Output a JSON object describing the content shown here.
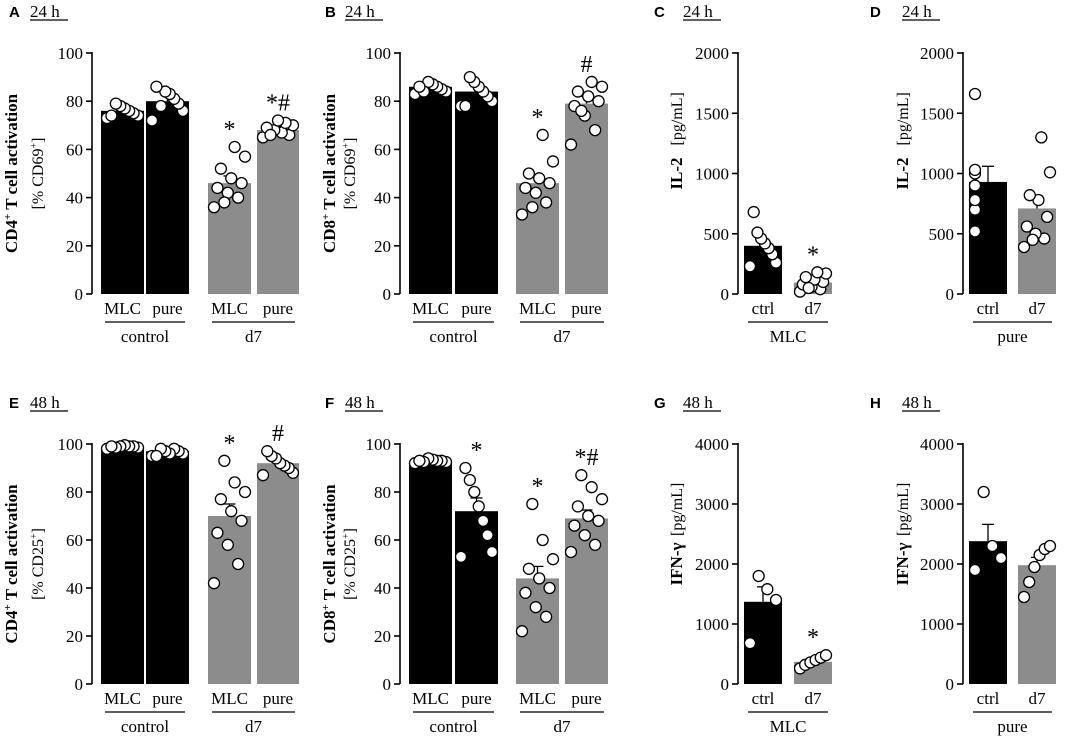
{
  "colors": {
    "black_bar": "#000000",
    "grey_bar": "#8c8c8c",
    "point_fill": "#ffffff"
  },
  "chart_data": [
    {
      "id": "A",
      "panel_label": "A",
      "time": "24 h",
      "type": "bar",
      "ylabel_main": "CD4",
      "ylabel_sup": "+",
      "ylabel_rest": " T cell activation",
      "ylabel_sub": "[% CD69",
      "ylabel_sub_sup": "+",
      "ylabel_sub_end": "]",
      "ylim": [
        0,
        100
      ],
      "yticks": [
        "0",
        "20",
        "40",
        "60",
        "80",
        "100"
      ],
      "categories": [
        "MLC",
        "pure",
        "MLC",
        "pure"
      ],
      "bar_colors": [
        "black",
        "black",
        "grey",
        "grey"
      ],
      "values": [
        76,
        80,
        46,
        68
      ],
      "sem": [
        1.5,
        2.5,
        3.0,
        1.5
      ],
      "points": [
        [
          73,
          74,
          75,
          76,
          77,
          78,
          79,
          74
        ],
        [
          72,
          76,
          79,
          81,
          83,
          84,
          78,
          86
        ],
        [
          36,
          40,
          42,
          44,
          46,
          48,
          52,
          57,
          61,
          38
        ],
        [
          65,
          66,
          67,
          68,
          69,
          70,
          71,
          72,
          66
        ]
      ],
      "marks": [
        "",
        "",
        "*",
        "*#"
      ],
      "groups": [
        {
          "label": "control",
          "span": [
            0,
            1
          ]
        },
        {
          "label": "d7",
          "span": [
            2,
            3
          ]
        }
      ]
    },
    {
      "id": "B",
      "panel_label": "B",
      "time": "24 h",
      "type": "bar",
      "ylabel_main": "CD8",
      "ylabel_sup": "+",
      "ylabel_rest": " T cell activation",
      "ylabel_sub": "[% CD69",
      "ylabel_sub_sup": "+",
      "ylabel_sub_end": "]",
      "ylim": [
        0,
        100
      ],
      "yticks": [
        "0",
        "20",
        "40",
        "60",
        "80",
        "100"
      ],
      "categories": [
        "MLC",
        "pure",
        "MLC",
        "pure"
      ],
      "bar_colors": [
        "black",
        "black",
        "grey",
        "grey"
      ],
      "values": [
        86,
        84,
        46,
        79
      ],
      "sem": [
        1.2,
        2.0,
        3.5,
        3.0
      ],
      "points": [
        [
          83,
          84,
          85,
          86,
          87,
          88,
          84,
          86
        ],
        [
          78,
          80,
          82,
          84,
          86,
          88,
          90,
          78
        ],
        [
          33,
          38,
          42,
          44,
          46,
          48,
          50,
          55,
          66,
          36
        ],
        [
          62,
          68,
          74,
          78,
          80,
          82,
          84,
          86,
          88,
          76
        ]
      ],
      "marks": [
        "",
        "",
        "*",
        "#"
      ],
      "groups": [
        {
          "label": "control",
          "span": [
            0,
            1
          ]
        },
        {
          "label": "d7",
          "span": [
            2,
            3
          ]
        }
      ]
    },
    {
      "id": "C",
      "panel_label": "C",
      "time": "24 h",
      "type": "bar",
      "ylabel_main": "IL-2",
      "ylabel_unit": "[pg/mL]",
      "ylim": [
        0,
        2000
      ],
      "yticks": [
        "0",
        "500",
        "1000",
        "1500",
        "2000"
      ],
      "categories": [
        "ctrl",
        "d7"
      ],
      "bar_colors": [
        "black",
        "grey"
      ],
      "values": [
        400,
        95
      ],
      "sem": [
        55,
        25
      ],
      "points": [
        [
          230,
          260,
          330,
          380,
          420,
          460,
          510,
          680
        ],
        [
          20,
          40,
          60,
          80,
          100,
          120,
          140,
          170,
          180,
          50
        ]
      ],
      "marks": [
        "",
        "*"
      ],
      "groups": [
        {
          "label": "MLC",
          "span": [
            0,
            1
          ]
        }
      ]
    },
    {
      "id": "D",
      "panel_label": "D",
      "time": "24 h",
      "type": "bar",
      "ylabel_main": "IL-2",
      "ylabel_unit": "[pg/mL]",
      "ylim": [
        0,
        2000
      ],
      "yticks": [
        "0",
        "500",
        "1000",
        "1500",
        "2000"
      ],
      "categories": [
        "ctrl",
        "d7"
      ],
      "bar_colors": [
        "black",
        "grey"
      ],
      "values": [
        930,
        710
      ],
      "sem": [
        130,
        95
      ],
      "points": [
        [
          520,
          700,
          780,
          900,
          1000,
          1030,
          1660
        ],
        [
          390,
          460,
          500,
          560,
          640,
          780,
          820,
          1010,
          1300,
          450
        ]
      ],
      "marks": [
        "",
        ""
      ],
      "groups": [
        {
          "label": "pure",
          "span": [
            0,
            1
          ]
        }
      ]
    },
    {
      "id": "E",
      "panel_label": "E",
      "time": "48 h",
      "type": "bar",
      "ylabel_main": "CD4",
      "ylabel_sup": "+",
      "ylabel_rest": " T cell activation",
      "ylabel_sub": "[% CD25",
      "ylabel_sub_sup": "+",
      "ylabel_sub_end": "]",
      "ylim": [
        0,
        100
      ],
      "yticks": [
        "0",
        "20",
        "40",
        "60",
        "80",
        "100"
      ],
      "categories": [
        "MLC",
        "pure",
        "MLC",
        "pure"
      ],
      "bar_colors": [
        "black",
        "black",
        "grey",
        "grey"
      ],
      "values": [
        99,
        97,
        70,
        92
      ],
      "sem": [
        0.5,
        1.0,
        5.0,
        1.5
      ],
      "points": [
        [
          98,
          98.5,
          99,
          99,
          99.5,
          99,
          98.5,
          99
        ],
        [
          95,
          96,
          97,
          98,
          96,
          97,
          98,
          95
        ],
        [
          42,
          50,
          58,
          63,
          68,
          72,
          77,
          80,
          84,
          93
        ],
        [
          87,
          88,
          90,
          91,
          92,
          94,
          95,
          97
        ]
      ],
      "marks": [
        "",
        "",
        "*",
        "#"
      ],
      "groups": [
        {
          "label": "control",
          "span": [
            0,
            1
          ]
        },
        {
          "label": "d7",
          "span": [
            2,
            3
          ]
        }
      ]
    },
    {
      "id": "F",
      "panel_label": "F",
      "time": "48 h",
      "type": "bar",
      "ylabel_main": "CD8",
      "ylabel_sup": "+",
      "ylabel_rest": " T cell activation",
      "ylabel_sub": "[% CD25",
      "ylabel_sub_sup": "+",
      "ylabel_sub_end": "]",
      "ylim": [
        0,
        100
      ],
      "yticks": [
        "0",
        "20",
        "40",
        "60",
        "80",
        "100"
      ],
      "categories": [
        "MLC",
        "pure",
        "MLC",
        "pure"
      ],
      "bar_colors": [
        "black",
        "black",
        "grey",
        "grey"
      ],
      "values": [
        93,
        72,
        44,
        69
      ],
      "sem": [
        0.5,
        5.5,
        5.0,
        3.5
      ],
      "points": [
        [
          92,
          92.5,
          93,
          93,
          93.5,
          94,
          92.5,
          93
        ],
        [
          53,
          55,
          62,
          68,
          74,
          80,
          85,
          90
        ],
        [
          22,
          28,
          32,
          38,
          40,
          44,
          48,
          52,
          60,
          75
        ],
        [
          55,
          58,
          62,
          66,
          68,
          70,
          74,
          77,
          82,
          87
        ]
      ],
      "marks": [
        "",
        "*",
        "*",
        "*#"
      ],
      "groups": [
        {
          "label": "control",
          "span": [
            0,
            1
          ]
        },
        {
          "label": "d7",
          "span": [
            2,
            3
          ]
        }
      ]
    },
    {
      "id": "G",
      "panel_label": "G",
      "time": "48 h",
      "type": "bar",
      "ylabel_main": "IFN-γ",
      "ylabel_unit": "[pg/mL]",
      "ylim": [
        0,
        4000
      ],
      "yticks": [
        "0",
        "1000",
        "2000",
        "3000",
        "4000"
      ],
      "categories": [
        "ctrl",
        "d7"
      ],
      "bar_colors": [
        "black",
        "grey"
      ],
      "values": [
        1370,
        370
      ],
      "sem": [
        250,
        40
      ],
      "points": [
        [
          680,
          1400,
          1580,
          1800
        ],
        [
          260,
          320,
          360,
          400,
          440,
          480
        ]
      ],
      "marks": [
        "",
        "*"
      ],
      "groups": [
        {
          "label": "MLC",
          "span": [
            0,
            1
          ]
        }
      ]
    },
    {
      "id": "H",
      "panel_label": "H",
      "time": "48 h",
      "type": "bar",
      "ylabel_main": "IFN-γ",
      "ylabel_unit": "[pg/mL]",
      "ylim": [
        0,
        4000
      ],
      "yticks": [
        "0",
        "1000",
        "2000",
        "3000",
        "4000"
      ],
      "categories": [
        "ctrl",
        "d7"
      ],
      "bar_colors": [
        "black",
        "grey"
      ],
      "values": [
        2380,
        1980
      ],
      "sem": [
        280,
        130
      ],
      "points": [
        [
          1900,
          2100,
          2300,
          3200
        ],
        [
          1450,
          1700,
          1950,
          2150,
          2250,
          2300
        ]
      ],
      "marks": [
        "",
        ""
      ],
      "groups": [
        {
          "label": "pure",
          "span": [
            0,
            1
          ]
        }
      ]
    }
  ]
}
